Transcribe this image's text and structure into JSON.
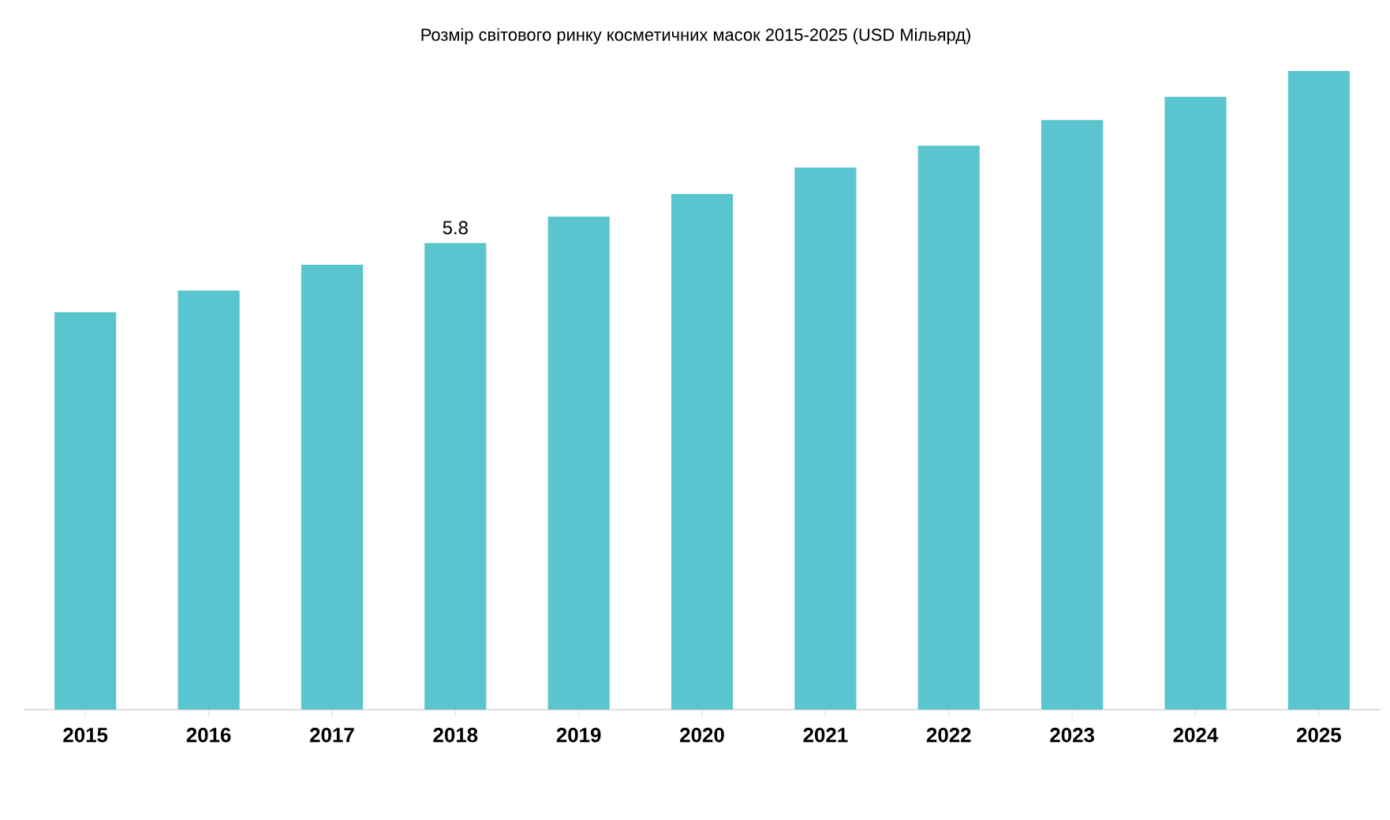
{
  "chart_data": {
    "type": "bar",
    "title": "Розмір світового ринку косметичних масок 2015-2025 (USD Мільярд)",
    "categories": [
      "2015",
      "2016",
      "2017",
      "2018",
      "2019",
      "2020",
      "2021",
      "2022",
      "2023",
      "2024",
      "2025"
    ],
    "values": [
      4.94,
      5.21,
      5.53,
      5.8,
      6.13,
      6.41,
      6.74,
      7.01,
      7.33,
      7.62,
      7.94
    ],
    "value_labels": [
      null,
      null,
      null,
      "5.8",
      null,
      null,
      null,
      null,
      null,
      null,
      null
    ],
    "color": "#5bc5cf"
  }
}
